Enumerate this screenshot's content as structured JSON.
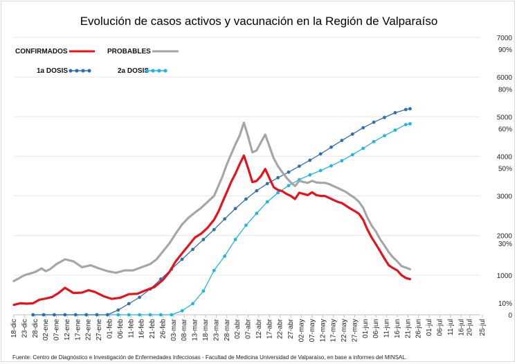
{
  "chart_data": {
    "type": "line",
    "title": "Evolución de casos activos y vacunación en la Región de Valparaíso",
    "source": "Fuente: Centro de Diagnóstico e Investigación de Enfermedades Infecciosas - Facultad de Medicina Universidad de Valparaíso, en base a informes  del MINSAL.",
    "x_ticks": [
      "18-dic",
      "23-dic",
      "28-dic",
      "02-ene",
      "07-ene",
      "12-ene",
      "17-ene",
      "22-ene",
      "27-ene",
      "01-feb",
      "06-feb",
      "11-feb",
      "16-feb",
      "21-feb",
      "26-feb",
      "03-mar",
      "08-mar",
      "13-mar",
      "18-mar",
      "23-mar",
      "28-mar",
      "02-abr",
      "07-abr",
      "12-abr",
      "17-abr",
      "22-abr",
      "27-abr",
      "02-may",
      "07-may",
      "12-may",
      "17-may",
      "22-may",
      "27-may",
      "01-jun",
      "06-jun",
      "11-jun",
      "16-jun",
      "21-jun",
      "26-jun",
      "01-jul",
      "06-jul",
      "11-jul",
      "16-jul",
      "20-jul",
      "25-jul"
    ],
    "y_axis_cases": {
      "ticks": [
        "0",
        "1000",
        "2000",
        "3000",
        "4000",
        "5000",
        "6000",
        "7000"
      ],
      "range": [
        0,
        7000
      ]
    },
    "y_axis_vaccination": {
      "ticks": [
        "10%",
        "30%",
        "50%",
        "60%",
        "80%",
        "90%"
      ]
    },
    "legend": {
      "confirmados": "CONFIRMADOS",
      "probables": "PROBABLES",
      "dosis1": "1a DOSIS",
      "dosis2": "2a DOSIS"
    },
    "colors": {
      "confirmados": "#e8101a",
      "probables": "#a6a6a6",
      "dosis1": "#2e6fb0",
      "dosis2": "#1eb4e6"
    },
    "series": [
      {
        "key": "confirmados",
        "name": "CONFIRMADOS",
        "points": [
          [
            0,
            250
          ],
          [
            3,
            290
          ],
          [
            6,
            280
          ],
          [
            9,
            290
          ],
          [
            12,
            380
          ],
          [
            15,
            410
          ],
          [
            18,
            450
          ],
          [
            21,
            550
          ],
          [
            24,
            680
          ],
          [
            28,
            550
          ],
          [
            32,
            560
          ],
          [
            35,
            620
          ],
          [
            38,
            580
          ],
          [
            42,
            470
          ],
          [
            46,
            400
          ],
          [
            50,
            430
          ],
          [
            54,
            520
          ],
          [
            58,
            530
          ],
          [
            62,
            620
          ],
          [
            66,
            700
          ],
          [
            70,
            880
          ],
          [
            73,
            1080
          ],
          [
            76,
            1350
          ],
          [
            79,
            1550
          ],
          [
            82,
            1750
          ],
          [
            85,
            1950
          ],
          [
            88,
            2050
          ],
          [
            91,
            2200
          ],
          [
            94,
            2400
          ],
          [
            96,
            2600
          ],
          [
            98,
            2850
          ],
          [
            100,
            3100
          ],
          [
            102,
            3350
          ],
          [
            104,
            3560
          ],
          [
            106,
            3800
          ],
          [
            108,
            4020
          ],
          [
            110,
            3700
          ],
          [
            112,
            3350
          ],
          [
            114,
            3380
          ],
          [
            116,
            3500
          ],
          [
            118,
            3680
          ],
          [
            120,
            3450
          ],
          [
            122,
            3220
          ],
          [
            124,
            3150
          ],
          [
            126,
            3120
          ],
          [
            128,
            3050
          ],
          [
            130,
            3000
          ],
          [
            132,
            2920
          ],
          [
            134,
            3080
          ],
          [
            136,
            3050
          ],
          [
            138,
            3020
          ],
          [
            140,
            3090
          ],
          [
            142,
            3020
          ],
          [
            144,
            3000
          ],
          [
            146,
            3000
          ],
          [
            148,
            2950
          ],
          [
            150,
            2900
          ],
          [
            152,
            2850
          ],
          [
            154,
            2820
          ],
          [
            156,
            2750
          ],
          [
            158,
            2680
          ],
          [
            160,
            2620
          ],
          [
            162,
            2550
          ],
          [
            164,
            2400
          ],
          [
            166,
            2150
          ],
          [
            168,
            1950
          ],
          [
            170,
            1780
          ],
          [
            172,
            1600
          ],
          [
            174,
            1420
          ],
          [
            176,
            1250
          ],
          [
            178,
            1180
          ],
          [
            180,
            1120
          ],
          [
            182,
            1000
          ],
          [
            184,
            930
          ],
          [
            186,
            900
          ]
        ]
      },
      {
        "key": "probables",
        "name": "PROBABLES",
        "points": [
          [
            0,
            850
          ],
          [
            5,
            1000
          ],
          [
            10,
            1080
          ],
          [
            13,
            1170
          ],
          [
            15,
            1100
          ],
          [
            17,
            1150
          ],
          [
            20,
            1280
          ],
          [
            24,
            1400
          ],
          [
            28,
            1350
          ],
          [
            32,
            1200
          ],
          [
            36,
            1250
          ],
          [
            40,
            1170
          ],
          [
            44,
            1100
          ],
          [
            48,
            1060
          ],
          [
            52,
            1120
          ],
          [
            56,
            1120
          ],
          [
            60,
            1200
          ],
          [
            64,
            1280
          ],
          [
            67,
            1400
          ],
          [
            70,
            1600
          ],
          [
            73,
            1800
          ],
          [
            76,
            2050
          ],
          [
            79,
            2280
          ],
          [
            82,
            2450
          ],
          [
            85,
            2580
          ],
          [
            88,
            2700
          ],
          [
            91,
            2850
          ],
          [
            94,
            3000
          ],
          [
            96,
            3250
          ],
          [
            98,
            3500
          ],
          [
            100,
            3800
          ],
          [
            102,
            4050
          ],
          [
            104,
            4300
          ],
          [
            106,
            4520
          ],
          [
            108,
            4850
          ],
          [
            110,
            4500
          ],
          [
            112,
            4100
          ],
          [
            114,
            4150
          ],
          [
            116,
            4350
          ],
          [
            118,
            4550
          ],
          [
            120,
            4250
          ],
          [
            122,
            3950
          ],
          [
            124,
            3750
          ],
          [
            126,
            3600
          ],
          [
            128,
            3460
          ],
          [
            130,
            3340
          ],
          [
            132,
            3250
          ],
          [
            134,
            3380
          ],
          [
            136,
            3350
          ],
          [
            138,
            3330
          ],
          [
            140,
            3380
          ],
          [
            142,
            3340
          ],
          [
            144,
            3330
          ],
          [
            146,
            3330
          ],
          [
            148,
            3300
          ],
          [
            150,
            3250
          ],
          [
            152,
            3200
          ],
          [
            154,
            3150
          ],
          [
            156,
            3100
          ],
          [
            158,
            3020
          ],
          [
            160,
            2950
          ],
          [
            162,
            2850
          ],
          [
            164,
            2700
          ],
          [
            166,
            2450
          ],
          [
            168,
            2250
          ],
          [
            170,
            2100
          ],
          [
            172,
            1900
          ],
          [
            174,
            1750
          ],
          [
            176,
            1580
          ],
          [
            178,
            1450
          ],
          [
            180,
            1350
          ],
          [
            182,
            1230
          ],
          [
            184,
            1190
          ],
          [
            186,
            1150
          ]
        ]
      },
      {
        "key": "dosis1",
        "name": "1a DOSIS",
        "points": [
          [
            9,
            0
          ],
          [
            14,
            0
          ],
          [
            19,
            0
          ],
          [
            24,
            0
          ],
          [
            29,
            0
          ],
          [
            34,
            0
          ],
          [
            39,
            0
          ],
          [
            44,
            0
          ],
          [
            49,
            120
          ],
          [
            54,
            280
          ],
          [
            59,
            440
          ],
          [
            64,
            650
          ],
          [
            69,
            900
          ],
          [
            74,
            1150
          ],
          [
            79,
            1400
          ],
          [
            84,
            1650
          ],
          [
            89,
            1900
          ],
          [
            94,
            2150
          ],
          [
            99,
            2420
          ],
          [
            104,
            2680
          ],
          [
            109,
            2920
          ],
          [
            114,
            3130
          ],
          [
            119,
            3310
          ],
          [
            124,
            3460
          ],
          [
            129,
            3600
          ],
          [
            134,
            3750
          ],
          [
            139,
            3900
          ],
          [
            144,
            4060
          ],
          [
            149,
            4230
          ],
          [
            154,
            4400
          ],
          [
            159,
            4560
          ],
          [
            164,
            4720
          ],
          [
            169,
            4860
          ],
          [
            174,
            4980
          ],
          [
            179,
            5100
          ],
          [
            184,
            5180
          ],
          [
            186,
            5200
          ]
        ]
      },
      {
        "key": "dosis2",
        "name": "2a DOSIS",
        "points": [
          [
            9,
            0
          ],
          [
            14,
            0
          ],
          [
            19,
            0
          ],
          [
            24,
            0
          ],
          [
            29,
            0
          ],
          [
            34,
            0
          ],
          [
            39,
            0
          ],
          [
            44,
            0
          ],
          [
            49,
            0
          ],
          [
            54,
            0
          ],
          [
            59,
            0
          ],
          [
            64,
            0
          ],
          [
            69,
            0
          ],
          [
            74,
            0
          ],
          [
            79,
            100
          ],
          [
            84,
            280
          ],
          [
            89,
            600
          ],
          [
            94,
            1120
          ],
          [
            99,
            1480
          ],
          [
            104,
            1900
          ],
          [
            109,
            2260
          ],
          [
            114,
            2560
          ],
          [
            119,
            2850
          ],
          [
            124,
            3080
          ],
          [
            129,
            3260
          ],
          [
            134,
            3410
          ],
          [
            139,
            3530
          ],
          [
            144,
            3640
          ],
          [
            149,
            3760
          ],
          [
            154,
            3890
          ],
          [
            159,
            4040
          ],
          [
            164,
            4200
          ],
          [
            169,
            4370
          ],
          [
            174,
            4520
          ],
          [
            179,
            4660
          ],
          [
            184,
            4800
          ],
          [
            186,
            4820
          ]
        ]
      }
    ]
  }
}
